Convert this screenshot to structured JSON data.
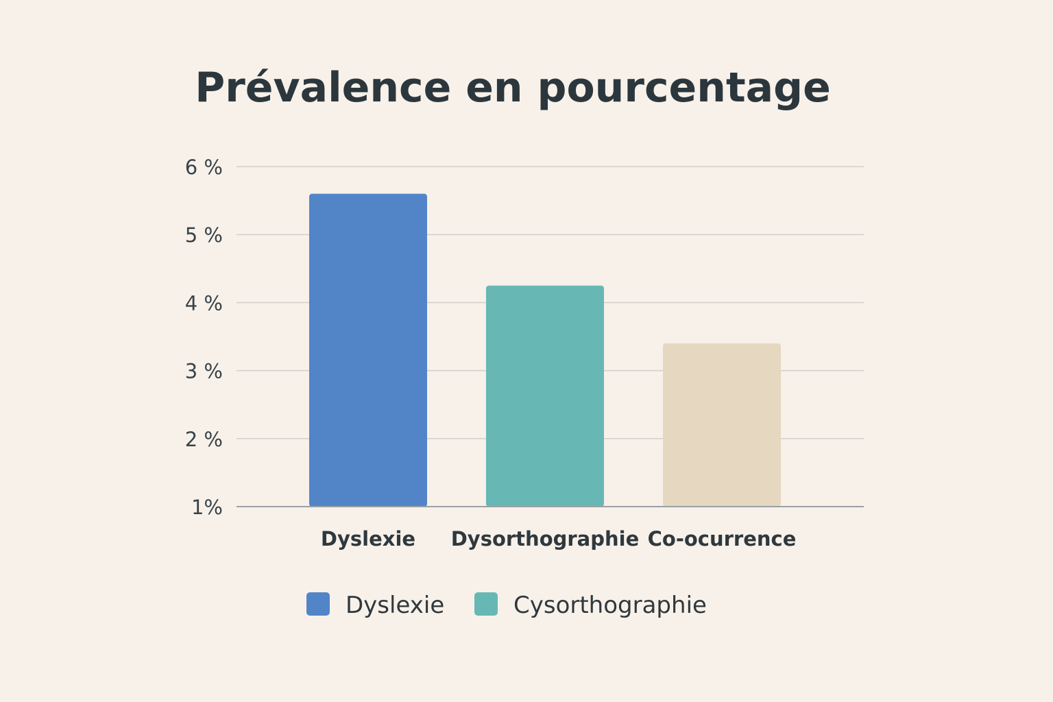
{
  "chart_data": {
    "type": "bar",
    "title": "Prévalence en pourcentage",
    "xlabel": "",
    "ylabel": "",
    "categories": [
      "Dyslexie",
      "Dysorthographie",
      "Co-ocurrence"
    ],
    "values": [
      5.6,
      4.25,
      3.4
    ],
    "ylim": [
      1,
      6
    ],
    "yticks": [
      1,
      2,
      3,
      4,
      5,
      6
    ],
    "ytick_labels": [
      "1%",
      "2 %",
      "3 %",
      "4 %",
      "5 %",
      "6 %"
    ],
    "grid": true,
    "bar_colors": [
      "#5285c8",
      "#67b8b4",
      "#e6d8c0"
    ],
    "legend": {
      "placement": "bottom",
      "entries": [
        {
          "label": "Dyslexie",
          "color": "#5285c8"
        },
        {
          "label": "Cysorthographie",
          "color": "#67b8b4"
        }
      ]
    }
  }
}
